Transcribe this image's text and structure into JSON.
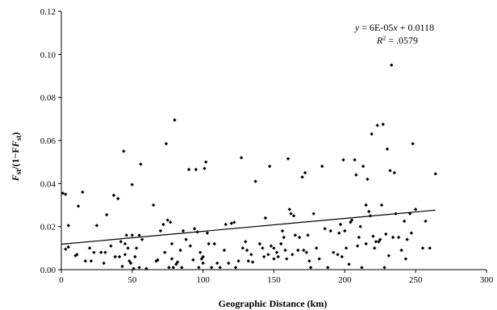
{
  "chart_data": {
    "type": "scatter",
    "title": "",
    "xlabel": "Geographic Distance (km)",
    "ylabel_main": "F",
    "ylabel_sub1": "st",
    "ylabel_mid": "/(1−F",
    "ylabel_sub2": "st",
    "ylabel_end": ")",
    "xlim": [
      0,
      300
    ],
    "ylim": [
      0,
      0.12
    ],
    "x_ticks": [
      "0",
      "50",
      "100",
      "150",
      "200",
      "250",
      "300"
    ],
    "y_ticks": [
      "0.00",
      "0.02",
      "0.04",
      "0.06",
      "0.08",
      "0.10",
      "0.12"
    ],
    "grid": false,
    "trendline": {
      "equation_y": "y",
      "equation_mid": " = 6E-05",
      "equation_x": "x",
      "equation_end": " + 0.0118",
      "r2_label": "R",
      "r2_sup": "2",
      "r2_value": " = .0579",
      "slope": 6e-05,
      "intercept": 0.0118,
      "x_range": [
        0,
        264
      ]
    },
    "points": [
      [
        1,
        0.0355
      ],
      [
        3,
        0.035
      ],
      [
        3,
        0.0095
      ],
      [
        5,
        0.0105
      ],
      [
        5,
        0.0205
      ],
      [
        10,
        0.0065
      ],
      [
        11,
        0.007
      ],
      [
        12,
        0.0295
      ],
      [
        15,
        0.036
      ],
      [
        17,
        0.004
      ],
      [
        20,
        0.01
      ],
      [
        21,
        0.004
      ],
      [
        23,
        0.008
      ],
      [
        25,
        0.0205
      ],
      [
        28,
        0.008
      ],
      [
        30,
        0.003
      ],
      [
        31,
        0.008
      ],
      [
        32,
        0.0255
      ],
      [
        35,
        0.011
      ],
      [
        37,
        0.0345
      ],
      [
        38,
        0.006
      ],
      [
        40,
        0.033
      ],
      [
        41,
        0.006
      ],
      [
        42,
        0.013
      ],
      [
        43,
        0.0015
      ],
      [
        44,
        0.055
      ],
      [
        45,
        0.012
      ],
      [
        45,
        0.007
      ],
      [
        46,
        0.016
      ],
      [
        47,
        0.01
      ],
      [
        48,
        0.004
      ],
      [
        49,
        0.003
      ],
      [
        50,
        0.0395
      ],
      [
        50,
        0.016
      ],
      [
        51,
        0.0005
      ],
      [
        52,
        0.006
      ],
      [
        53,
        0.01
      ],
      [
        55,
        0.016
      ],
      [
        55,
        0.001
      ],
      [
        56,
        0.049
      ],
      [
        57,
        0.014
      ],
      [
        60,
        0.0005
      ],
      [
        65,
        0.03
      ],
      [
        67,
        0.004
      ],
      [
        68,
        0.0045
      ],
      [
        70,
        0.018
      ],
      [
        72,
        0.021
      ],
      [
        73,
        0.008
      ],
      [
        74,
        0.0585
      ],
      [
        75,
        0.023
      ],
      [
        76,
        0.001
      ],
      [
        77,
        0.022
      ],
      [
        78,
        0.005
      ],
      [
        78,
        0.012
      ],
      [
        79,
        0.001
      ],
      [
        80,
        0.0695
      ],
      [
        81,
        0.0025
      ],
      [
        82,
        0.0035
      ],
      [
        84,
        0.009
      ],
      [
        85,
        0.001
      ],
      [
        86,
        0.018
      ],
      [
        88,
        0.014
      ],
      [
        90,
        0.0465
      ],
      [
        91,
        0.011
      ],
      [
        93,
        0.0045
      ],
      [
        94,
        0.019
      ],
      [
        95,
        0.0465
      ],
      [
        96,
        0.0175
      ],
      [
        97,
        0.001
      ],
      [
        98,
        0.008
      ],
      [
        99,
        0.005
      ],
      [
        100,
        0.006
      ],
      [
        100,
        0.003
      ],
      [
        101,
        0.047
      ],
      [
        102,
        0.05
      ],
      [
        103,
        0.017
      ],
      [
        104,
        0.012
      ],
      [
        106,
        0.001
      ],
      [
        108,
        0.012
      ],
      [
        110,
        0.003
      ],
      [
        112,
        0.001
      ],
      [
        115,
        0.009
      ],
      [
        116,
        0.021
      ],
      [
        118,
        0.003
      ],
      [
        120,
        0.0215
      ],
      [
        122,
        0.022
      ],
      [
        123,
        0.001
      ],
      [
        125,
        0.004
      ],
      [
        127,
        0.052
      ],
      [
        128,
        0.01
      ],
      [
        130,
        0.013
      ],
      [
        131,
        0.009
      ],
      [
        132,
        0.004
      ],
      [
        134,
        0.007
      ],
      [
        135,
        0.0035
      ],
      [
        137,
        0.041
      ],
      [
        140,
        0.012
      ],
      [
        142,
        0.01
      ],
      [
        143,
        0.006
      ],
      [
        144,
        0.024
      ],
      [
        146,
        0.007
      ],
      [
        147,
        0.048
      ],
      [
        148,
        0.011
      ],
      [
        150,
        0.01
      ],
      [
        150,
        0.005
      ],
      [
        152,
        0.008
      ],
      [
        153,
        0.006
      ],
      [
        155,
        0.012
      ],
      [
        156,
        0.018
      ],
      [
        157,
        0.015
      ],
      [
        158,
        0.009
      ],
      [
        159,
        0.005
      ],
      [
        160,
        0.0515
      ],
      [
        161,
        0.028
      ],
      [
        162,
        0.026
      ],
      [
        163,
        0.007
      ],
      [
        164,
        0.025
      ],
      [
        165,
        0.016
      ],
      [
        167,
        0.009
      ],
      [
        168,
        0.015
      ],
      [
        170,
        0.043
      ],
      [
        171,
        0.009
      ],
      [
        172,
        0.045
      ],
      [
        173,
        0.008
      ],
      [
        174,
        0.016
      ],
      [
        175,
        0.004
      ],
      [
        176,
        0.001
      ],
      [
        178,
        0.026
      ],
      [
        180,
        0.01
      ],
      [
        182,
        0.005
      ],
      [
        184,
        0.048
      ],
      [
        186,
        0.019
      ],
      [
        188,
        0.001
      ],
      [
        190,
        0.018
      ],
      [
        192,
        0.008
      ],
      [
        195,
        0.007
      ],
      [
        196,
        0.017
      ],
      [
        197,
        0.021
      ],
      [
        198,
        0.006
      ],
      [
        199,
        0.051
      ],
      [
        200,
        0.018
      ],
      [
        201,
        0.01
      ],
      [
        203,
        0.0025
      ],
      [
        204,
        0.022
      ],
      [
        205,
        0.023
      ],
      [
        207,
        0.051
      ],
      [
        208,
        0.044
      ],
      [
        209,
        0.011
      ],
      [
        210,
        0.015
      ],
      [
        211,
        0.02
      ],
      [
        212,
        0.001
      ],
      [
        213,
        0.048
      ],
      [
        215,
        0.012
      ],
      [
        215,
        0.03
      ],
      [
        216,
        0.042
      ],
      [
        217,
        0.027
      ],
      [
        218,
        0.025
      ],
      [
        219,
        0.063
      ],
      [
        220,
        0.0155
      ],
      [
        221,
        0.01
      ],
      [
        222,
        0.013
      ],
      [
        223,
        0.067
      ],
      [
        224,
        0.013
      ],
      [
        225,
        0.014
      ],
      [
        226,
        0.03
      ],
      [
        227,
        0.0675
      ],
      [
        228,
        0.001
      ],
      [
        229,
        0.0165
      ],
      [
        230,
        0.056
      ],
      [
        231,
        0.0065
      ],
      [
        232,
        0.046
      ],
      [
        233,
        0.095
      ],
      [
        234,
        0.015
      ],
      [
        235,
        0.045
      ],
      [
        236,
        0.026
      ],
      [
        238,
        0.015
      ],
      [
        240,
        0.009
      ],
      [
        242,
        0.0225
      ],
      [
        243,
        0.005
      ],
      [
        244,
        0.014
      ],
      [
        246,
        0.026
      ],
      [
        247,
        0.017
      ],
      [
        248,
        0.0585
      ],
      [
        250,
        0.028
      ],
      [
        255,
        0.01
      ],
      [
        257,
        0.0225
      ],
      [
        260,
        0.01
      ],
      [
        264,
        0.0445
      ]
    ]
  }
}
